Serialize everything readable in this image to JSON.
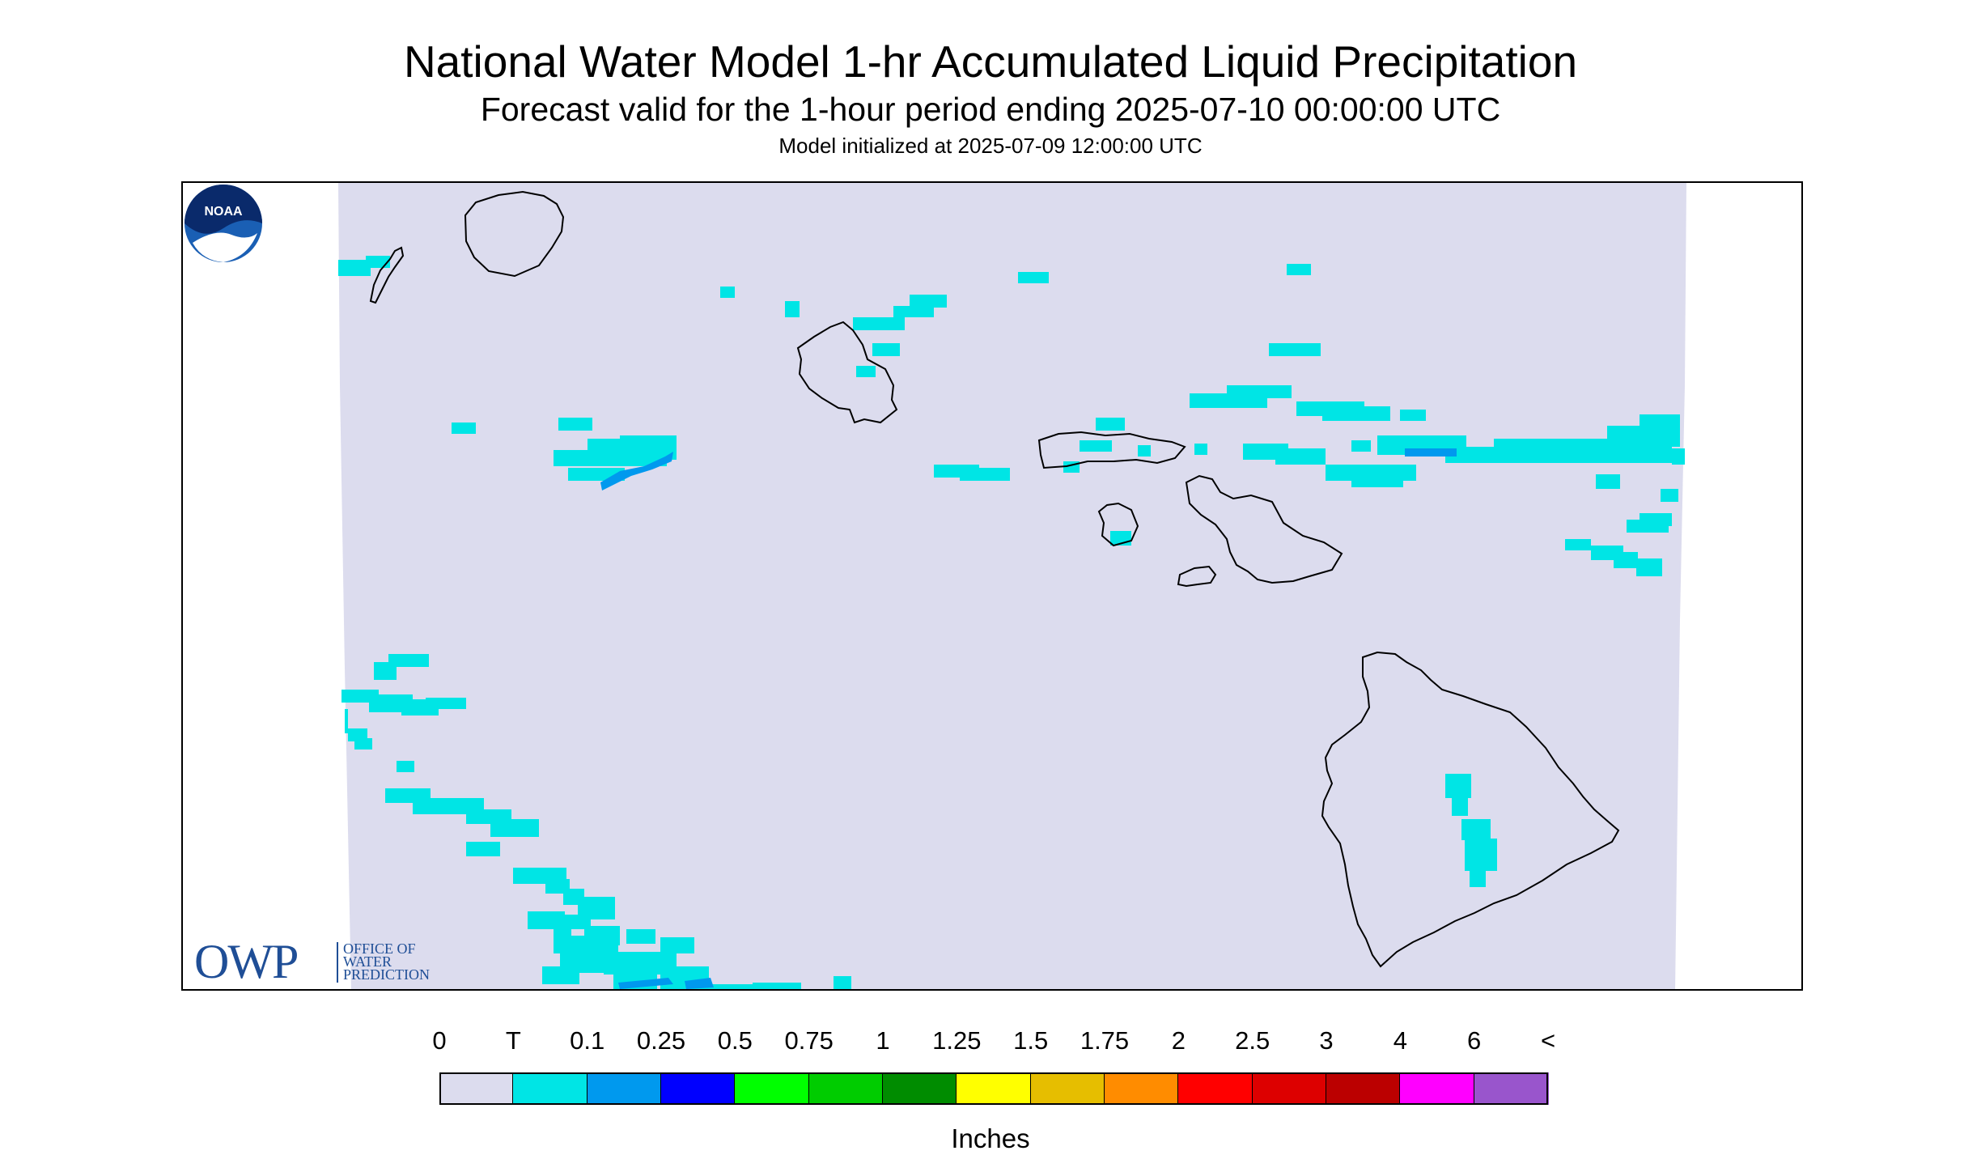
{
  "title": "National Water Model 1-hr Accumulated Liquid Precipitation",
  "subtitle": "Forecast valid for the 1-hour period ending 2025-07-10 00:00:00 UTC",
  "init_line": "Model initialized at 2025-07-09 12:00:00 UTC",
  "owp_logo": {
    "big": "OWP",
    "line1": "OFFICE OF",
    "line2": "WATER",
    "line3": "PREDICTION"
  },
  "noaa_logo": {
    "text": "NOAA"
  },
  "colors": {
    "domain": "#dcdcee",
    "trace": "#00e5e5",
    "light_blue": "#0099ee",
    "coast": "#000000"
  },
  "legend": {
    "units": "Inches",
    "tick_labels": [
      "0",
      "T",
      "0.1",
      "0.25",
      "0.5",
      "0.75",
      "1",
      "1.25",
      "1.5",
      "1.75",
      "2",
      "2.5",
      "3",
      "4",
      "6",
      "<"
    ],
    "swatches": [
      "#dcdcee",
      "#00e5e5",
      "#0099ee",
      "#0000ff",
      "#00ff00",
      "#00cc00",
      "#008c00",
      "#ffff00",
      "#e6be00",
      "#ff8c00",
      "#ff0000",
      "#dd0000",
      "#bb0000",
      "#ff00ff",
      "#9955cc"
    ]
  }
}
